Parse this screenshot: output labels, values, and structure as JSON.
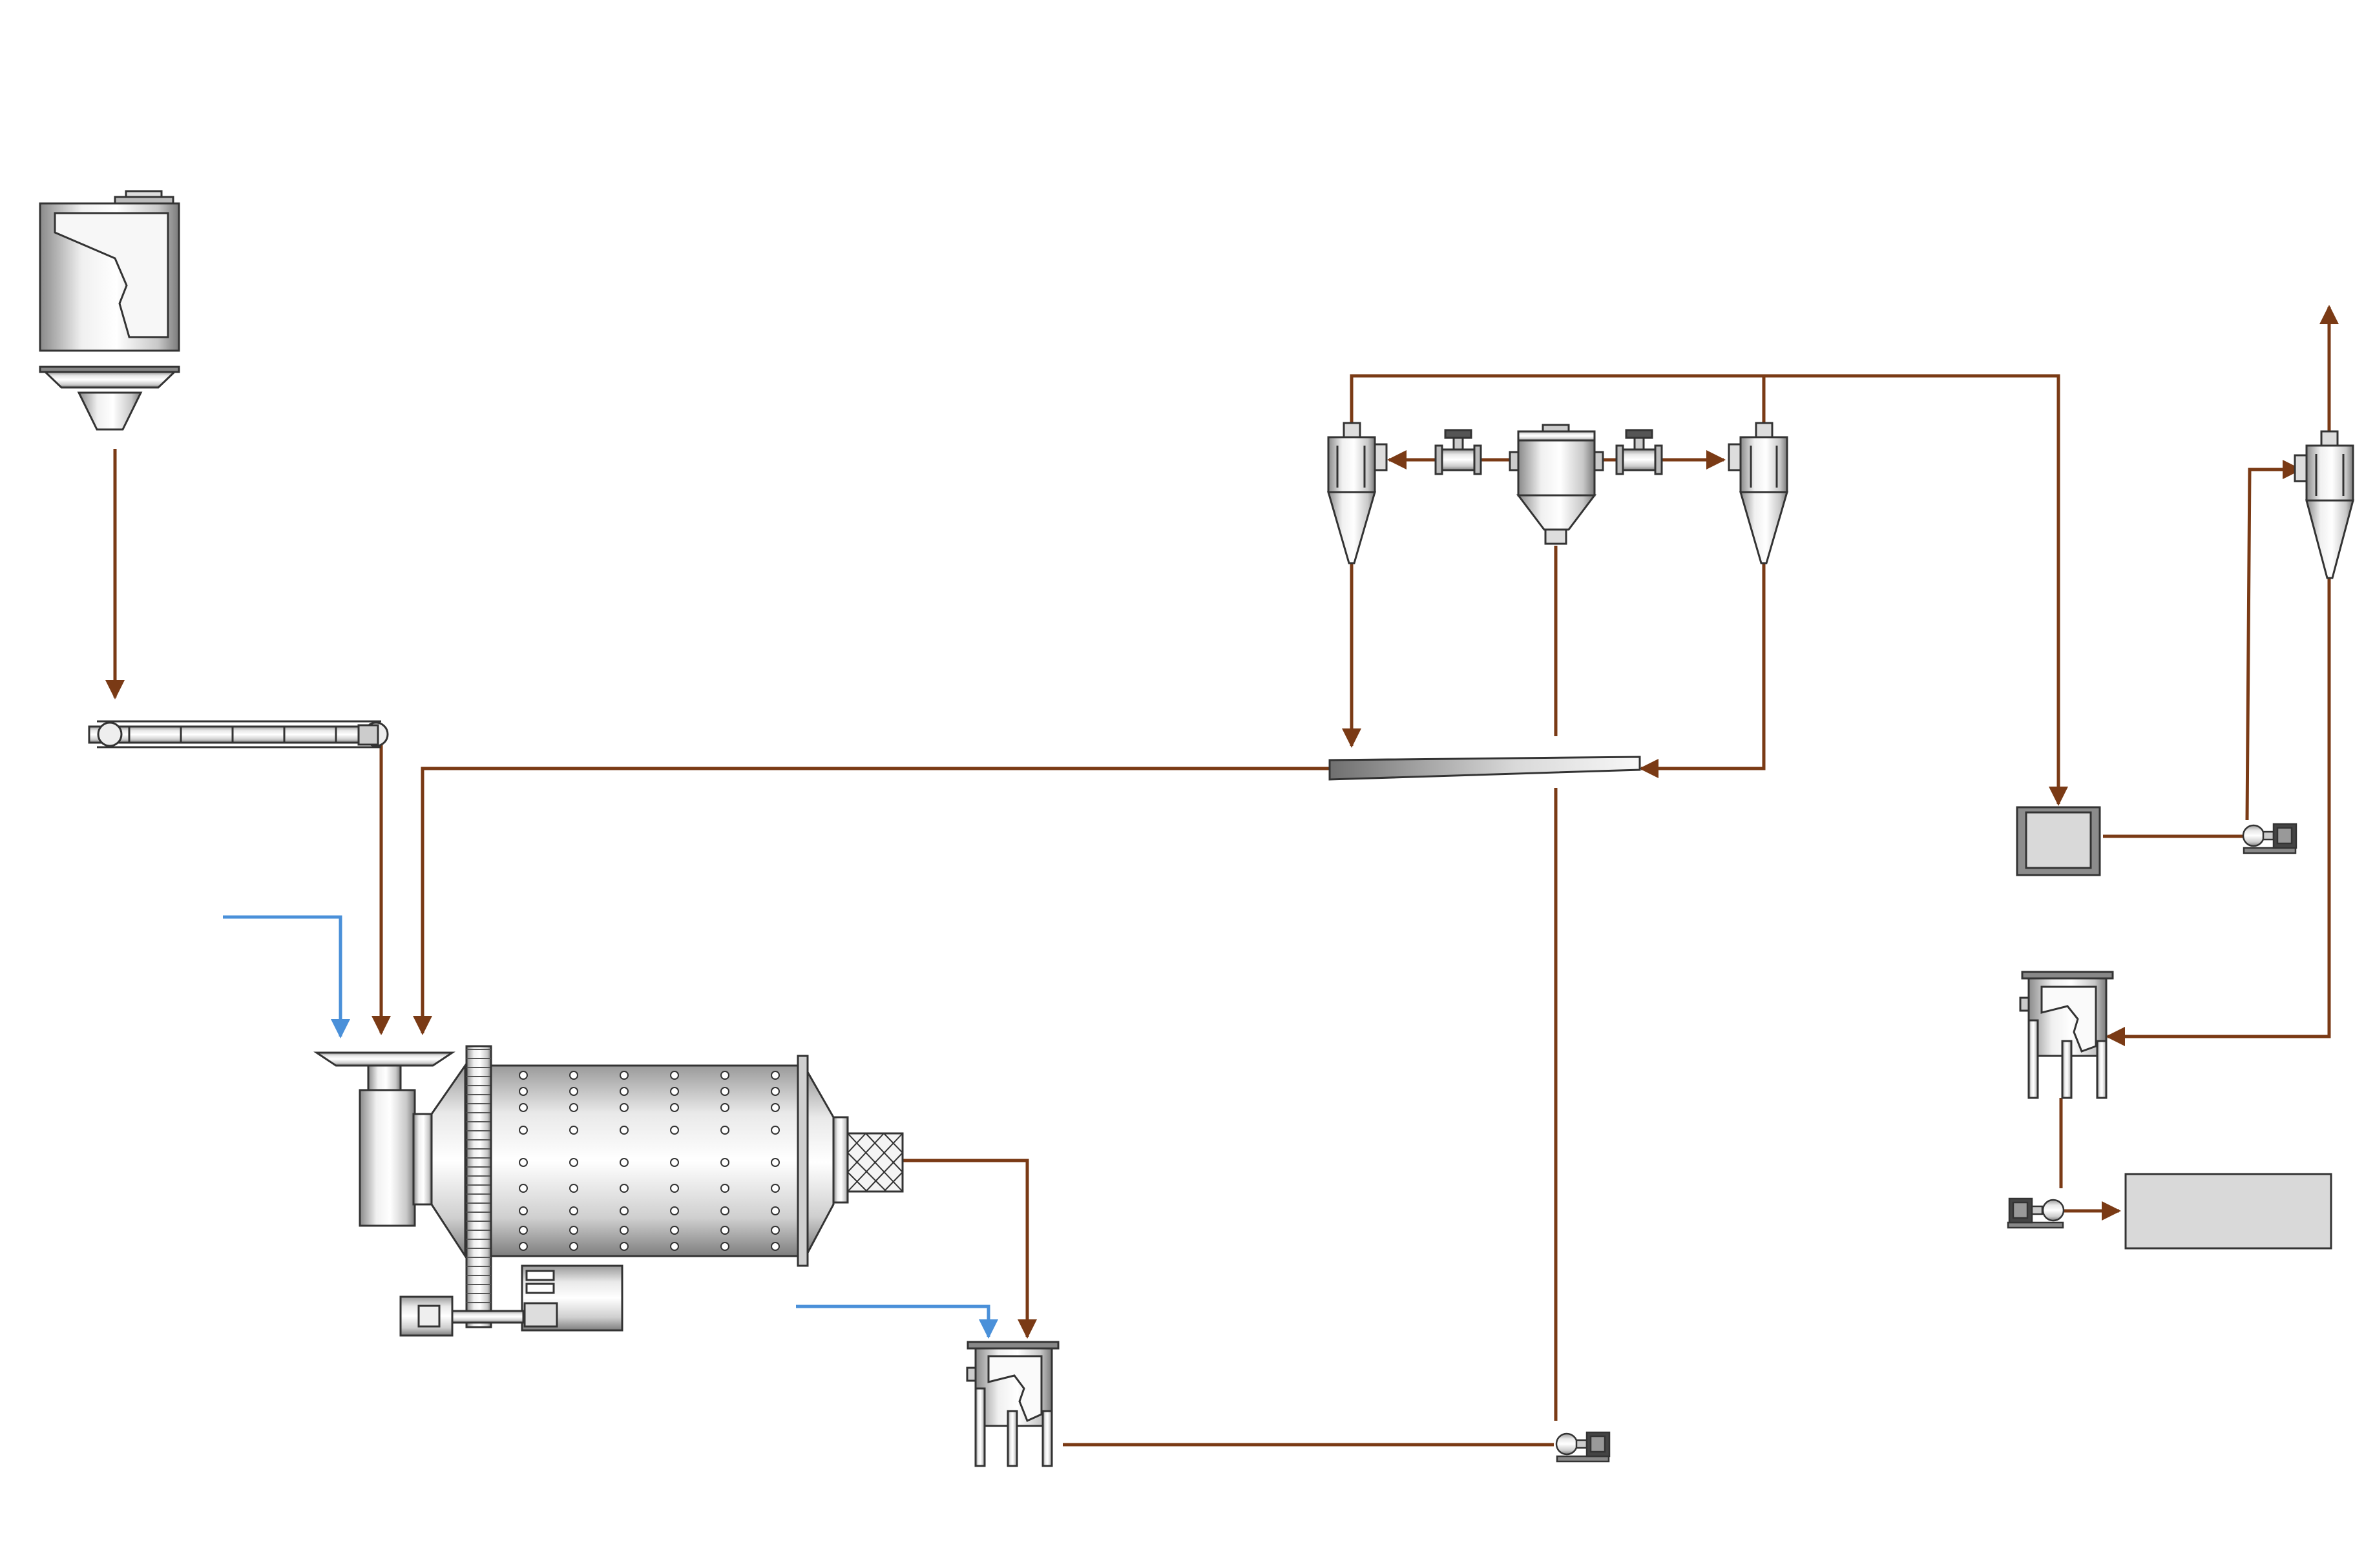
{
  "diagram": {
    "type": "process-flow",
    "colors": {
      "slurry_line": "#7a3a15",
      "water_line": "#4a90d9",
      "equipment_stroke": "#333333",
      "equipment_fill_light": "#f2f2f2",
      "equipment_fill_dark": "#8c8c8c",
      "tank_fill": "#d9d9d9"
    },
    "equipment": [
      {
        "id": "feed-hopper",
        "icon": "hopper-with-chute"
      },
      {
        "id": "belt-conveyor",
        "icon": "belt-conveyor"
      },
      {
        "id": "ball-mill",
        "icon": "ball-mill"
      },
      {
        "id": "mill-pump-box",
        "icon": "pump-box"
      },
      {
        "id": "slurry-pump-1",
        "icon": "centrifugal-pump"
      },
      {
        "id": "hydrocyclone-left",
        "icon": "hydrocyclone"
      },
      {
        "id": "hydrocyclone-right",
        "icon": "hydrocyclone"
      },
      {
        "id": "distributor-tank",
        "icon": "feed-distributor"
      },
      {
        "id": "valve-left",
        "icon": "gate-valve"
      },
      {
        "id": "valve-right",
        "icon": "gate-valve"
      },
      {
        "id": "vibrating-screen",
        "icon": "screen"
      },
      {
        "id": "collection-tank",
        "icon": "tank"
      },
      {
        "id": "slurry-pump-2",
        "icon": "centrifugal-pump"
      },
      {
        "id": "hydrocyclone-far-right",
        "icon": "hydrocyclone"
      },
      {
        "id": "lower-pump-box",
        "icon": "pump-box"
      },
      {
        "id": "slurry-pump-3",
        "icon": "centrifugal-pump"
      },
      {
        "id": "product-storage",
        "icon": "storage-box"
      }
    ]
  }
}
